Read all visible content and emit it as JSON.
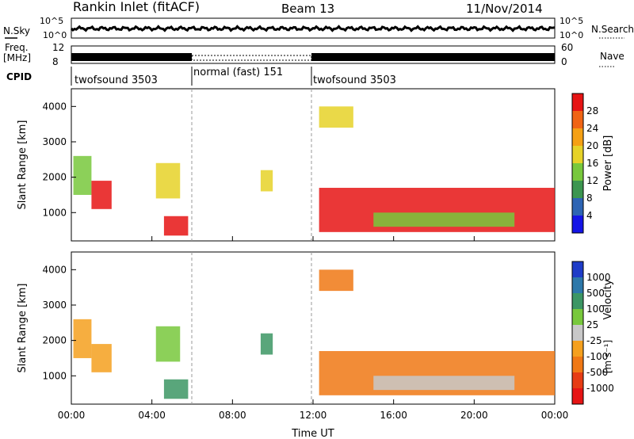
{
  "header": {
    "title": "Rankin Inlet (fitACF)",
    "beam": "Beam 13",
    "date": "11/Nov/2014"
  },
  "strips": {
    "nsky_label": "N.Sky",
    "nsky_ticks": [
      "10^5",
      "10^0"
    ],
    "nsearch_label": "N.Search",
    "nsearch_ticks": [
      "10^5",
      "10^0"
    ],
    "freq_label": "Freq.",
    "freq_unit": "[MHz]",
    "freq_ticks": [
      "12",
      "8"
    ],
    "nave_label": "Nave",
    "nave_ticks": [
      "60",
      "0"
    ],
    "cpid_label": "CPID",
    "cpid_segments": [
      {
        "label": "twofsound 3503",
        "start": 0,
        "end": 6
      },
      {
        "label": "normal (fast) 151",
        "start": 6,
        "end": 12
      },
      {
        "label": "twofsound 3503",
        "start": 12,
        "end": 24
      }
    ]
  },
  "axes": {
    "ylabel": "Slant Range [km]",
    "xlabel": "Time UT",
    "yticks": [
      "1000",
      "2000",
      "3000",
      "4000"
    ],
    "xticks": [
      "00:00",
      "04:00",
      "08:00",
      "12:00",
      "16:00",
      "20:00",
      "00:00"
    ]
  },
  "power_bar": {
    "label": "Power [dB]",
    "ticks": [
      "4",
      "8",
      "12",
      "16",
      "20",
      "24",
      "28"
    ],
    "colors": [
      "#1414e6",
      "#2d64b4",
      "#3c9650",
      "#78c83c",
      "#e6d228",
      "#f5a014",
      "#f06414",
      "#e61414"
    ]
  },
  "velocity_bar": {
    "label": "Velocity",
    "unit": "[m s⁻¹]",
    "ticks": [
      "1000",
      "500",
      "100",
      "25",
      "-25",
      "-100",
      "-500",
      "-1000"
    ],
    "colors": [
      "#1e3cc8",
      "#2d78aa",
      "#3c9664",
      "#78c83c",
      "#c8c8c8",
      "#f5a01e",
      "#f07814",
      "#e63c14",
      "#e61414"
    ]
  },
  "chart_data": {
    "type": "heatmap",
    "x_unit": "hours UT",
    "xlim": [
      0,
      24
    ],
    "ylim": [
      200,
      4500
    ],
    "regions": [
      {
        "t0": 0.1,
        "t1": 1.0,
        "r0": 1500,
        "r1": 2600,
        "power": 12,
        "velocity": -100
      },
      {
        "t0": 1.0,
        "t1": 2.0,
        "r0": 1100,
        "r1": 1900,
        "power": 28,
        "velocity": -100
      },
      {
        "t0": 4.2,
        "t1": 5.4,
        "r0": 1400,
        "r1": 2400,
        "power": 16,
        "velocity": 25
      },
      {
        "t0": 4.6,
        "t1": 5.8,
        "r0": 350,
        "r1": 900,
        "power": 28,
        "velocity": 100
      },
      {
        "t0": 9.4,
        "t1": 10.0,
        "r0": 1600,
        "r1": 2200,
        "power": 16,
        "velocity": 100
      },
      {
        "t0": 12.3,
        "t1": 24.0,
        "r0": 450,
        "r1": 1700,
        "power": 28,
        "velocity": -500
      },
      {
        "t0": 12.3,
        "t1": 14.0,
        "r0": 3400,
        "r1": 4000,
        "power": 16,
        "velocity": -500
      },
      {
        "t0": 15.0,
        "t1": 22.0,
        "r0": 600,
        "r1": 1000,
        "power": 12,
        "velocity": -25
      }
    ]
  }
}
